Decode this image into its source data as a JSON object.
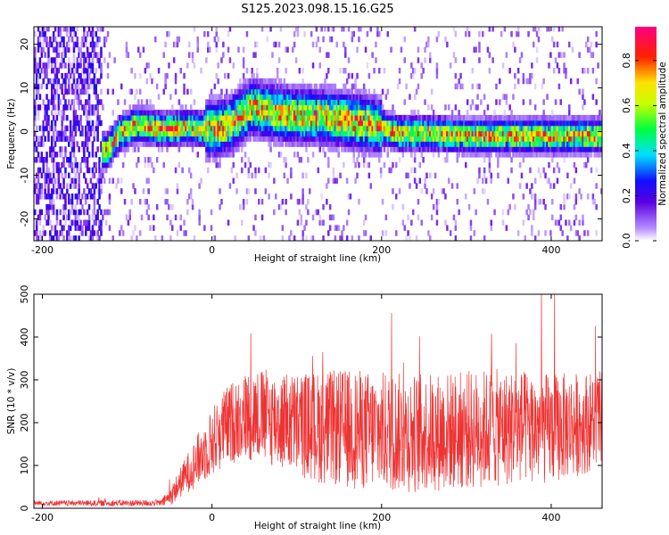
{
  "title": "S125.2023.098.15.16.G25",
  "chart_data": [
    {
      "type": "heatmap",
      "xlabel": "Height of straight line (km)",
      "ylabel": "Frequency (Hz)",
      "xlim": [
        -210,
        460
      ],
      "ylim": [
        -25,
        24
      ],
      "xticks": [
        -200,
        0,
        200,
        400
      ],
      "yticks": [
        -20,
        -10,
        0,
        10,
        20
      ],
      "colorbar": {
        "label": "Normalized spectral amplitude",
        "range": [
          0,
          0.95
        ],
        "ticks": [
          0.0,
          0.2,
          0.4,
          0.6,
          0.8
        ],
        "colormap": "rainbow (purple-blue-cyan-green-yellow-red-magenta)"
      },
      "ridge_frequency": {
        "x": [
          -125,
          -110,
          -90,
          -60,
          -30,
          0,
          20,
          45,
          70,
          100,
          130,
          160,
          190,
          220,
          260,
          300,
          340,
          380,
          420,
          460
        ],
        "y": [
          -5,
          -1,
          1,
          0,
          0.5,
          0,
          1,
          5,
          4,
          3,
          3,
          2,
          1,
          -1,
          -1,
          -1.5,
          -1.5,
          -1.5,
          -1.5,
          -1.5
        ]
      },
      "grid": false
    },
    {
      "type": "line",
      "xlabel": "Height of straight line (km)",
      "ylabel": "SNR (10 * v/v)",
      "xlim": [
        -210,
        460
      ],
      "ylim": [
        0,
        500
      ],
      "xticks": [
        -200,
        0,
        200,
        400
      ],
      "yticks": [
        0,
        100,
        200,
        300,
        400,
        500
      ],
      "series": [
        {
          "color": "#ee3333",
          "envelope": {
            "x": [
              -210,
              -60,
              -50,
              -30,
              -10,
              10,
              30,
              50,
              80,
              120,
              160,
              200,
              240,
              280,
              320,
              360,
              400,
              440,
              460
            ],
            "mean": [
              12,
              12,
              25,
              80,
              130,
              180,
              210,
              220,
              205,
              190,
              185,
              180,
              175,
              180,
              185,
              190,
              185,
              200,
              210
            ],
            "spread": [
              6,
              8,
              20,
              45,
              70,
              90,
              100,
              110,
              115,
              130,
              140,
              140,
              140,
              140,
              140,
              135,
              130,
              120,
              110
            ]
          }
        }
      ],
      "grid": false
    }
  ]
}
